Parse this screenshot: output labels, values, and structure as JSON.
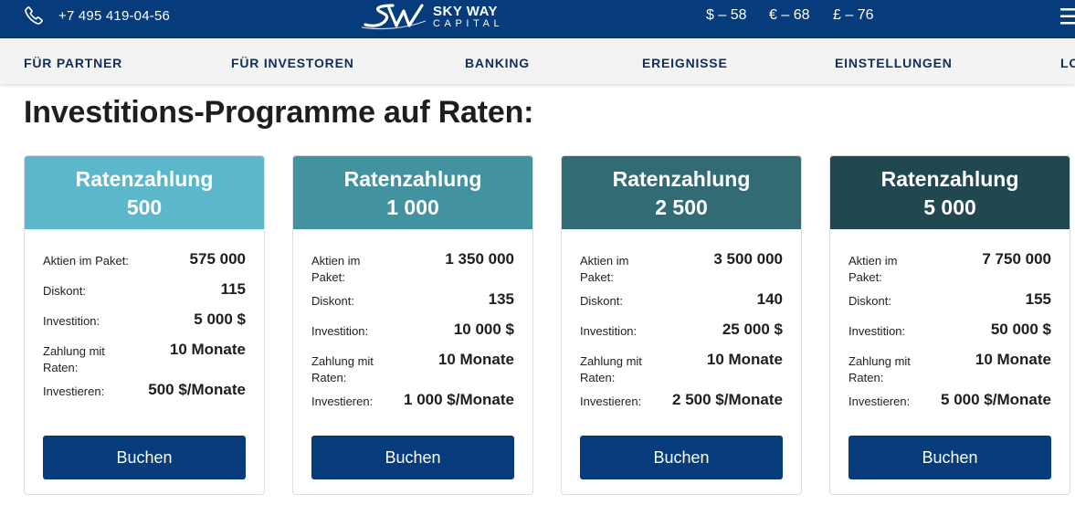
{
  "header": {
    "phone": "+7 495 419-04-56",
    "logo_line1": "SKY WAY",
    "logo_line2": "CAPITAL",
    "rates": [
      "$ – 58",
      "€ – 68",
      "£ – 76"
    ],
    "menu_icon": "hamburger-icon",
    "phone_icon": "phone-icon"
  },
  "nav": {
    "items": [
      "FÜR PARTNER",
      "FÜR INVESTOREN",
      "BANKING",
      "EREIGNISSE",
      "EINSTELLUNGEN",
      "LO"
    ]
  },
  "page": {
    "title": "Investitions-Programme auf Raten:"
  },
  "colors": {
    "header_bg": "#063b7c",
    "button_bg": "#063b7c",
    "card_heads": [
      "#5bb7c9",
      "#4392a0",
      "#336b74",
      "#214850"
    ]
  },
  "cards": [
    {
      "title": "Ratenzahlung",
      "amount": "500",
      "rows": [
        {
          "label": "Aktien im Paket:",
          "value": "575 000"
        },
        {
          "label": "Diskont:",
          "value": "115"
        },
        {
          "label": "Investition:",
          "value": "5 000 $"
        },
        {
          "label": "Zahlung mit Raten:",
          "value": "10 Monate"
        },
        {
          "label": "Investieren:",
          "value": "500 $/Monate"
        }
      ],
      "button": "Buchen"
    },
    {
      "title": "Ratenzahlung",
      "amount": "1 000",
      "rows": [
        {
          "label": "Aktien im Paket:",
          "value": "1 350 000"
        },
        {
          "label": "Diskont:",
          "value": "135"
        },
        {
          "label": "Investition:",
          "value": "10 000 $"
        },
        {
          "label": "Zahlung mit Raten:",
          "value": "10 Monate"
        },
        {
          "label": "Investieren:",
          "value": "1 000 $/Monate"
        }
      ],
      "button": "Buchen"
    },
    {
      "title": "Ratenzahlung",
      "amount": "2 500",
      "rows": [
        {
          "label": "Aktien im Paket:",
          "value": "3 500 000"
        },
        {
          "label": "Diskont:",
          "value": "140"
        },
        {
          "label": "Investition:",
          "value": "25 000 $"
        },
        {
          "label": "Zahlung mit Raten:",
          "value": "10 Monate"
        },
        {
          "label": "Investieren:",
          "value": "2 500 $/Monate"
        }
      ],
      "button": "Buchen"
    },
    {
      "title": "Ratenzahlung",
      "amount": "5 000",
      "rows": [
        {
          "label": "Aktien im Paket:",
          "value": "7 750 000"
        },
        {
          "label": "Diskont:",
          "value": "155"
        },
        {
          "label": "Investition:",
          "value": "50 000 $"
        },
        {
          "label": "Zahlung mit Raten:",
          "value": "10 Monate"
        },
        {
          "label": "Investieren:",
          "value": "5 000 $/Monate"
        }
      ],
      "button": "Buchen"
    }
  ]
}
